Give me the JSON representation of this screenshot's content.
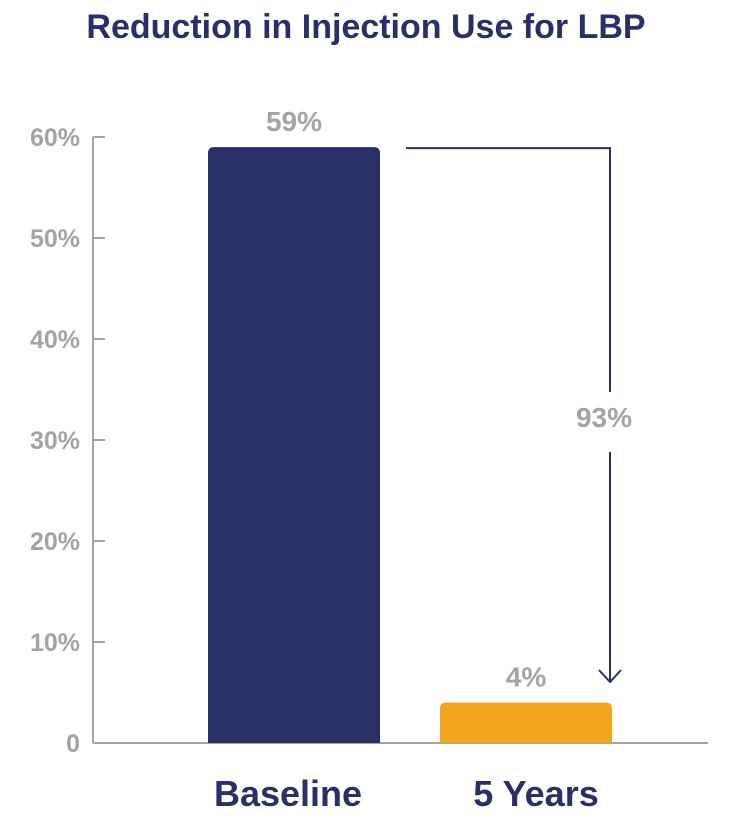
{
  "chart_data": {
    "type": "bar",
    "title": "Reduction in Injection Use for LBP",
    "xlabel": "",
    "ylabel": "",
    "ylim": [
      0,
      60
    ],
    "yticks": [
      0,
      10,
      20,
      30,
      40,
      50,
      60
    ],
    "ytick_labels": [
      "0",
      "10%",
      "20%",
      "30%",
      "40%",
      "50%",
      "60%"
    ],
    "grid": false,
    "categories": [
      "Baseline",
      "5 Years"
    ],
    "values": [
      59,
      4
    ],
    "data_labels": [
      "59%",
      "4%"
    ],
    "colors": [
      "#2a2f68",
      "#f4a51e"
    ],
    "annotation": {
      "text": "93%",
      "description_from": "Baseline",
      "description_to": "5 Years"
    }
  },
  "colors": {
    "axis": "#a3a3a3",
    "text_dark": "#2a2f68",
    "text_muted": "#a3a3a3"
  }
}
